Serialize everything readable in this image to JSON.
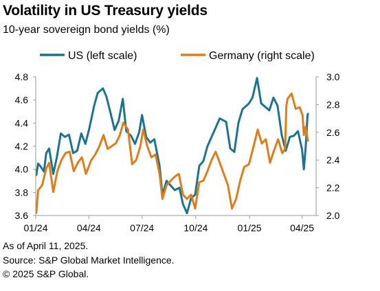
{
  "chart_data": {
    "type": "line",
    "title": "Volatility in US Treasury yields",
    "subtitle": "10-year sovereign bond yields (%)",
    "x_ticks": [
      "01/24",
      "04/24",
      "07/24",
      "10/24",
      "01/25",
      "04/25"
    ],
    "y_left": {
      "ticks": [
        "3.6",
        "3.8",
        "4.0",
        "4.2",
        "4.4",
        "4.6",
        "4.8"
      ],
      "range": [
        3.6,
        4.8
      ]
    },
    "y_right": {
      "ticks": [
        "2.0",
        "2.2",
        "2.4",
        "2.6",
        "2.8",
        "3.0"
      ],
      "range": [
        2.0,
        3.0
      ]
    },
    "legend_position": "top",
    "grid": false,
    "series": [
      {
        "name": "US (left scale)",
        "axis": "left",
        "color": "#1b7390",
        "points": [
          [
            "2024-01-02",
            3.95
          ],
          [
            "2024-01-05",
            4.05
          ],
          [
            "2024-01-10",
            4.02
          ],
          [
            "2024-01-15",
            3.98
          ],
          [
            "2024-01-19",
            4.14
          ],
          [
            "2024-01-24",
            4.18
          ],
          [
            "2024-01-31",
            3.96
          ],
          [
            "2024-02-06",
            4.1
          ],
          [
            "2024-02-13",
            4.31
          ],
          [
            "2024-02-20",
            4.28
          ],
          [
            "2024-02-27",
            4.3
          ],
          [
            "2024-03-05",
            4.14
          ],
          [
            "2024-03-12",
            4.16
          ],
          [
            "2024-03-19",
            4.31
          ],
          [
            "2024-03-26",
            4.22
          ],
          [
            "2024-04-02",
            4.36
          ],
          [
            "2024-04-10",
            4.55
          ],
          [
            "2024-04-16",
            4.66
          ],
          [
            "2024-04-25",
            4.7
          ],
          [
            "2024-05-01",
            4.63
          ],
          [
            "2024-05-08",
            4.49
          ],
          [
            "2024-05-15",
            4.34
          ],
          [
            "2024-05-22",
            4.42
          ],
          [
            "2024-05-29",
            4.61
          ],
          [
            "2024-06-04",
            4.33
          ],
          [
            "2024-06-12",
            4.29
          ],
          [
            "2024-06-19",
            4.22
          ],
          [
            "2024-06-26",
            4.32
          ],
          [
            "2024-07-01",
            4.47
          ],
          [
            "2024-07-08",
            4.28
          ],
          [
            "2024-07-15",
            4.23
          ],
          [
            "2024-07-22",
            4.26
          ],
          [
            "2024-07-31",
            4.03
          ],
          [
            "2024-08-05",
            3.78
          ],
          [
            "2024-08-12",
            3.9
          ],
          [
            "2024-08-19",
            3.86
          ],
          [
            "2024-08-26",
            3.82
          ],
          [
            "2024-09-03",
            3.84
          ],
          [
            "2024-09-09",
            3.7
          ],
          [
            "2024-09-16",
            3.62
          ],
          [
            "2024-09-23",
            3.75
          ],
          [
            "2024-09-30",
            3.78
          ],
          [
            "2024-10-07",
            4.03
          ],
          [
            "2024-10-14",
            4.07
          ],
          [
            "2024-10-21",
            4.2
          ],
          [
            "2024-10-28",
            4.28
          ],
          [
            "2024-11-04",
            4.36
          ],
          [
            "2024-11-11",
            4.44
          ],
          [
            "2024-11-15",
            4.43
          ],
          [
            "2024-11-22",
            4.41
          ],
          [
            "2024-11-29",
            4.18
          ],
          [
            "2024-12-06",
            4.15
          ],
          [
            "2024-12-13",
            4.4
          ],
          [
            "2024-12-20",
            4.52
          ],
          [
            "2024-12-31",
            4.57
          ],
          [
            "2025-01-06",
            4.62
          ],
          [
            "2025-01-14",
            4.79
          ],
          [
            "2025-01-21",
            4.57
          ],
          [
            "2025-01-28",
            4.54
          ],
          [
            "2025-02-04",
            4.51
          ],
          [
            "2025-02-11",
            4.62
          ],
          [
            "2025-02-18",
            4.55
          ],
          [
            "2025-02-25",
            4.3
          ],
          [
            "2025-03-04",
            4.16
          ],
          [
            "2025-03-11",
            4.28
          ],
          [
            "2025-03-18",
            4.29
          ],
          [
            "2025-03-25",
            4.33
          ],
          [
            "2025-04-01",
            4.17
          ],
          [
            "2025-04-04",
            4.0
          ],
          [
            "2025-04-07",
            4.18
          ],
          [
            "2025-04-09",
            4.34
          ],
          [
            "2025-04-10",
            4.45
          ],
          [
            "2025-04-11",
            4.48
          ]
        ]
      },
      {
        "name": "Germany (right scale)",
        "axis": "right",
        "color": "#e07c1a",
        "points": [
          [
            "2024-01-02",
            2.02
          ],
          [
            "2024-01-05",
            2.18
          ],
          [
            "2024-01-12",
            2.22
          ],
          [
            "2024-01-19",
            2.34
          ],
          [
            "2024-01-24",
            2.38
          ],
          [
            "2024-01-31",
            2.17
          ],
          [
            "2024-02-07",
            2.32
          ],
          [
            "2024-02-14",
            2.4
          ],
          [
            "2024-02-21",
            2.45
          ],
          [
            "2024-02-28",
            2.46
          ],
          [
            "2024-03-06",
            2.32
          ],
          [
            "2024-03-13",
            2.38
          ],
          [
            "2024-03-20",
            2.42
          ],
          [
            "2024-03-27",
            2.3
          ],
          [
            "2024-04-05",
            2.4
          ],
          [
            "2024-04-12",
            2.44
          ],
          [
            "2024-04-19",
            2.5
          ],
          [
            "2024-04-26",
            2.58
          ],
          [
            "2024-05-03",
            2.48
          ],
          [
            "2024-05-10",
            2.5
          ],
          [
            "2024-05-17",
            2.52
          ],
          [
            "2024-05-24",
            2.58
          ],
          [
            "2024-05-30",
            2.67
          ],
          [
            "2024-06-07",
            2.62
          ],
          [
            "2024-06-14",
            2.37
          ],
          [
            "2024-06-21",
            2.4
          ],
          [
            "2024-06-28",
            2.5
          ],
          [
            "2024-07-03",
            2.62
          ],
          [
            "2024-07-10",
            2.5
          ],
          [
            "2024-07-17",
            2.42
          ],
          [
            "2024-07-24",
            2.44
          ],
          [
            "2024-07-31",
            2.3
          ],
          [
            "2024-08-05",
            2.12
          ],
          [
            "2024-08-12",
            2.22
          ],
          [
            "2024-08-19",
            2.25
          ],
          [
            "2024-08-26",
            2.28
          ],
          [
            "2024-09-02",
            2.3
          ],
          [
            "2024-09-09",
            2.15
          ],
          [
            "2024-09-16",
            2.12
          ],
          [
            "2024-09-23",
            2.15
          ],
          [
            "2024-09-30",
            2.05
          ],
          [
            "2024-10-07",
            2.24
          ],
          [
            "2024-10-14",
            2.25
          ],
          [
            "2024-10-21",
            2.32
          ],
          [
            "2024-10-28",
            2.4
          ],
          [
            "2024-11-04",
            2.46
          ],
          [
            "2024-11-11",
            2.38
          ],
          [
            "2024-11-18",
            2.3
          ],
          [
            "2024-11-25",
            2.22
          ],
          [
            "2024-12-02",
            2.05
          ],
          [
            "2024-12-09",
            2.12
          ],
          [
            "2024-12-16",
            2.25
          ],
          [
            "2024-12-23",
            2.35
          ],
          [
            "2024-12-31",
            2.37
          ],
          [
            "2025-01-08",
            2.5
          ],
          [
            "2025-01-15",
            2.62
          ],
          [
            "2025-01-22",
            2.52
          ],
          [
            "2025-01-29",
            2.55
          ],
          [
            "2025-02-05",
            2.38
          ],
          [
            "2025-02-12",
            2.47
          ],
          [
            "2025-02-19",
            2.55
          ],
          [
            "2025-02-26",
            2.45
          ],
          [
            "2025-03-03",
            2.48
          ],
          [
            "2025-03-05",
            2.79
          ],
          [
            "2025-03-07",
            2.84
          ],
          [
            "2025-03-14",
            2.88
          ],
          [
            "2025-03-21",
            2.77
          ],
          [
            "2025-03-28",
            2.78
          ],
          [
            "2025-04-02",
            2.72
          ],
          [
            "2025-04-04",
            2.58
          ],
          [
            "2025-04-07",
            2.64
          ],
          [
            "2025-04-09",
            2.6
          ],
          [
            "2025-04-10",
            2.56
          ],
          [
            "2025-04-11",
            2.54
          ]
        ]
      }
    ]
  },
  "footer": {
    "as_of": "As of April 11, 2025.",
    "source": "Source: S&P Global Market Intelligence.",
    "copyright": "© 2025 S&P Global."
  }
}
